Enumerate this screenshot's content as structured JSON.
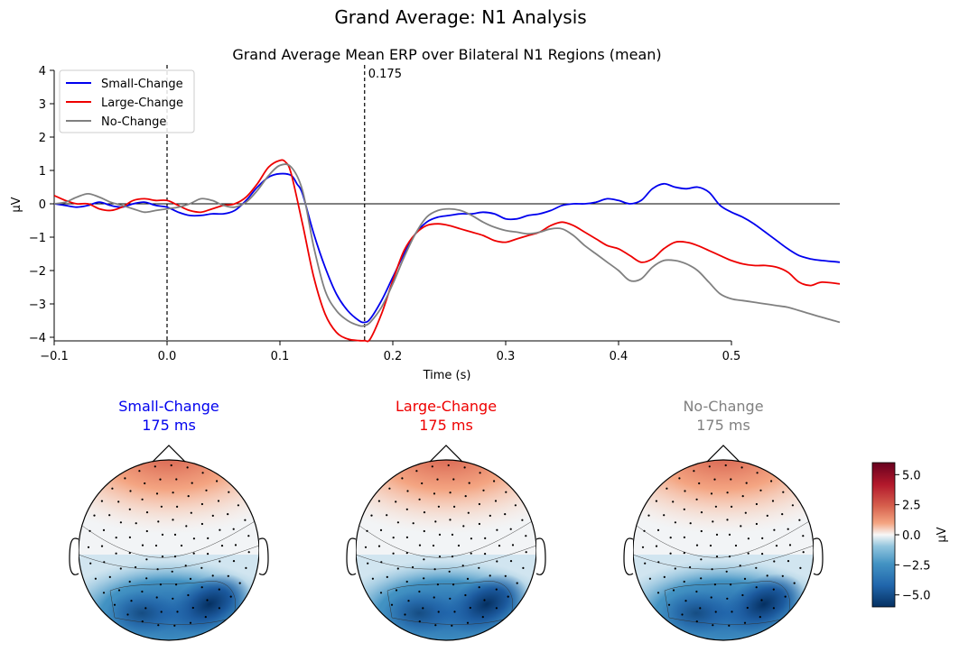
{
  "figure": {
    "suptitle": "Grand Average: N1 Analysis"
  },
  "chart_data": [
    {
      "type": "line",
      "title": "Grand Average Mean ERP over Bilateral N1 Regions (mean)",
      "xlabel": "Time (s)",
      "ylabel": "µV",
      "xlim": [
        -0.1,
        0.6
      ],
      "ylim": [
        -4.1,
        4.0
      ],
      "xticks": [
        -0.1,
        0.0,
        0.1,
        0.2,
        0.3,
        0.4,
        0.5
      ],
      "xtick_labels": [
        "−0.1",
        "0.0",
        "0.1",
        "0.2",
        "0.3",
        "0.4",
        "0.5"
      ],
      "yticks": [
        4,
        3,
        2,
        1,
        0,
        -1,
        -2,
        -3,
        -4
      ],
      "ytick_labels": [
        "4",
        "3",
        "2",
        "1",
        "0",
        "−1",
        "−2",
        "−3",
        "−4"
      ],
      "vlines": [
        0.0,
        0.175
      ],
      "vline_annotation": "0.175",
      "hline": 0,
      "legend_position": "top-left",
      "series": [
        {
          "name": "Small-Change",
          "color": "#0000ee",
          "x": [
            -0.1,
            -0.09,
            -0.08,
            -0.07,
            -0.06,
            -0.05,
            -0.04,
            -0.03,
            -0.02,
            -0.01,
            0.0,
            0.01,
            0.02,
            0.03,
            0.04,
            0.05,
            0.06,
            0.07,
            0.08,
            0.09,
            0.1,
            0.11,
            0.115,
            0.12,
            0.13,
            0.14,
            0.15,
            0.16,
            0.17,
            0.175,
            0.18,
            0.19,
            0.2,
            0.21,
            0.22,
            0.23,
            0.24,
            0.25,
            0.26,
            0.27,
            0.28,
            0.29,
            0.3,
            0.31,
            0.32,
            0.33,
            0.34,
            0.35,
            0.36,
            0.37,
            0.38,
            0.39,
            0.4,
            0.41,
            0.42,
            0.43,
            0.44,
            0.45,
            0.46,
            0.47,
            0.48,
            0.49,
            0.5,
            0.51,
            0.52,
            0.53,
            0.54,
            0.55,
            0.56,
            0.57,
            0.58,
            0.596
          ],
          "y": [
            0.0,
            -0.05,
            -0.1,
            -0.05,
            0.05,
            -0.05,
            -0.1,
            0.0,
            0.05,
            -0.05,
            -0.1,
            -0.25,
            -0.35,
            -0.35,
            -0.3,
            -0.3,
            -0.2,
            0.1,
            0.5,
            0.8,
            0.9,
            0.85,
            0.6,
            0.3,
            -0.9,
            -1.9,
            -2.7,
            -3.2,
            -3.5,
            -3.55,
            -3.45,
            -2.9,
            -2.2,
            -1.5,
            -0.9,
            -0.55,
            -0.4,
            -0.35,
            -0.3,
            -0.3,
            -0.25,
            -0.3,
            -0.45,
            -0.45,
            -0.35,
            -0.3,
            -0.2,
            -0.05,
            0.0,
            0.0,
            0.05,
            0.15,
            0.1,
            0.0,
            0.1,
            0.45,
            0.6,
            0.5,
            0.45,
            0.5,
            0.35,
            -0.05,
            -0.25,
            -0.4,
            -0.6,
            -0.85,
            -1.1,
            -1.35,
            -1.55,
            -1.65,
            -1.7,
            -1.75
          ]
        },
        {
          "name": "Large-Change",
          "color": "#ee0000",
          "x": [
            -0.1,
            -0.09,
            -0.08,
            -0.07,
            -0.06,
            -0.05,
            -0.04,
            -0.03,
            -0.02,
            -0.01,
            0.0,
            0.01,
            0.02,
            0.03,
            0.04,
            0.05,
            0.06,
            0.07,
            0.08,
            0.09,
            0.1,
            0.105,
            0.11,
            0.12,
            0.13,
            0.14,
            0.15,
            0.16,
            0.17,
            0.175,
            0.18,
            0.19,
            0.2,
            0.21,
            0.22,
            0.23,
            0.24,
            0.25,
            0.26,
            0.27,
            0.28,
            0.29,
            0.3,
            0.31,
            0.32,
            0.33,
            0.34,
            0.35,
            0.36,
            0.37,
            0.38,
            0.39,
            0.4,
            0.41,
            0.42,
            0.43,
            0.44,
            0.45,
            0.46,
            0.47,
            0.48,
            0.49,
            0.5,
            0.51,
            0.52,
            0.53,
            0.54,
            0.55,
            0.56,
            0.57,
            0.58,
            0.596
          ],
          "y": [
            0.25,
            0.1,
            0.0,
            0.0,
            -0.15,
            -0.2,
            -0.1,
            0.1,
            0.15,
            0.1,
            0.1,
            -0.05,
            -0.2,
            -0.25,
            -0.15,
            -0.05,
            0.0,
            0.2,
            0.6,
            1.1,
            1.3,
            1.25,
            0.9,
            -0.6,
            -2.2,
            -3.3,
            -3.85,
            -4.05,
            -4.1,
            -4.1,
            -4.05,
            -3.3,
            -2.3,
            -1.4,
            -0.9,
            -0.65,
            -0.6,
            -0.65,
            -0.75,
            -0.85,
            -0.95,
            -1.1,
            -1.15,
            -1.05,
            -0.95,
            -0.85,
            -0.65,
            -0.55,
            -0.65,
            -0.85,
            -1.05,
            -1.25,
            -1.35,
            -1.55,
            -1.75,
            -1.65,
            -1.35,
            -1.15,
            -1.15,
            -1.25,
            -1.4,
            -1.55,
            -1.7,
            -1.8,
            -1.85,
            -1.85,
            -1.9,
            -2.05,
            -2.35,
            -2.45,
            -2.35,
            -2.4
          ]
        },
        {
          "name": "No-Change",
          "color": "#808080",
          "x": [
            -0.1,
            -0.09,
            -0.08,
            -0.07,
            -0.06,
            -0.05,
            -0.04,
            -0.03,
            -0.02,
            -0.01,
            0.0,
            0.01,
            0.02,
            0.03,
            0.04,
            0.05,
            0.06,
            0.07,
            0.08,
            0.09,
            0.1,
            0.11,
            0.12,
            0.13,
            0.14,
            0.15,
            0.16,
            0.17,
            0.175,
            0.18,
            0.19,
            0.2,
            0.21,
            0.22,
            0.23,
            0.24,
            0.25,
            0.26,
            0.27,
            0.28,
            0.29,
            0.3,
            0.31,
            0.32,
            0.33,
            0.34,
            0.35,
            0.36,
            0.37,
            0.38,
            0.39,
            0.4,
            0.41,
            0.42,
            0.43,
            0.44,
            0.45,
            0.46,
            0.47,
            0.48,
            0.49,
            0.5,
            0.51,
            0.52,
            0.53,
            0.54,
            0.55,
            0.56,
            0.57,
            0.58,
            0.596
          ],
          "y": [
            0.0,
            0.05,
            0.2,
            0.3,
            0.2,
            0.05,
            -0.05,
            -0.15,
            -0.25,
            -0.2,
            -0.15,
            -0.1,
            0.0,
            0.15,
            0.1,
            -0.05,
            -0.1,
            0.05,
            0.4,
            0.85,
            1.15,
            1.1,
            0.4,
            -1.3,
            -2.6,
            -3.2,
            -3.5,
            -3.65,
            -3.65,
            -3.55,
            -3.1,
            -2.4,
            -1.6,
            -0.9,
            -0.4,
            -0.2,
            -0.15,
            -0.2,
            -0.35,
            -0.55,
            -0.7,
            -0.8,
            -0.85,
            -0.9,
            -0.85,
            -0.75,
            -0.75,
            -0.95,
            -1.25,
            -1.5,
            -1.75,
            -2.0,
            -2.3,
            -2.25,
            -1.9,
            -1.7,
            -1.7,
            -1.8,
            -2.0,
            -2.35,
            -2.7,
            -2.85,
            -2.9,
            -2.95,
            -3.0,
            -3.05,
            -3.1,
            -3.2,
            -3.3,
            -3.4,
            -3.55
          ]
        }
      ]
    },
    {
      "type": "heatmap",
      "subtype": "topomap",
      "panels": [
        {
          "label": "Small-Change",
          "time": "175 ms",
          "color": "#0000ee",
          "frontal_peak": 3.5,
          "posterior_trough": -5.5
        },
        {
          "label": "Large-Change",
          "time": "175 ms",
          "color": "#ee0000",
          "frontal_peak": 3.2,
          "posterior_trough": -5.8
        },
        {
          "label": "No-Change",
          "time": "175 ms",
          "color": "#808080",
          "frontal_peak": 3.3,
          "posterior_trough": -5.6
        }
      ],
      "colorbar": {
        "label": "µV",
        "range": [
          -6.0,
          6.0
        ],
        "ticks": [
          5.0,
          2.5,
          0.0,
          -2.5,
          -5.0
        ],
        "tick_labels": [
          "5.0",
          "2.5",
          "0.0",
          "−2.5",
          "−5.0"
        ],
        "colormap": "RdBu_r"
      }
    }
  ]
}
